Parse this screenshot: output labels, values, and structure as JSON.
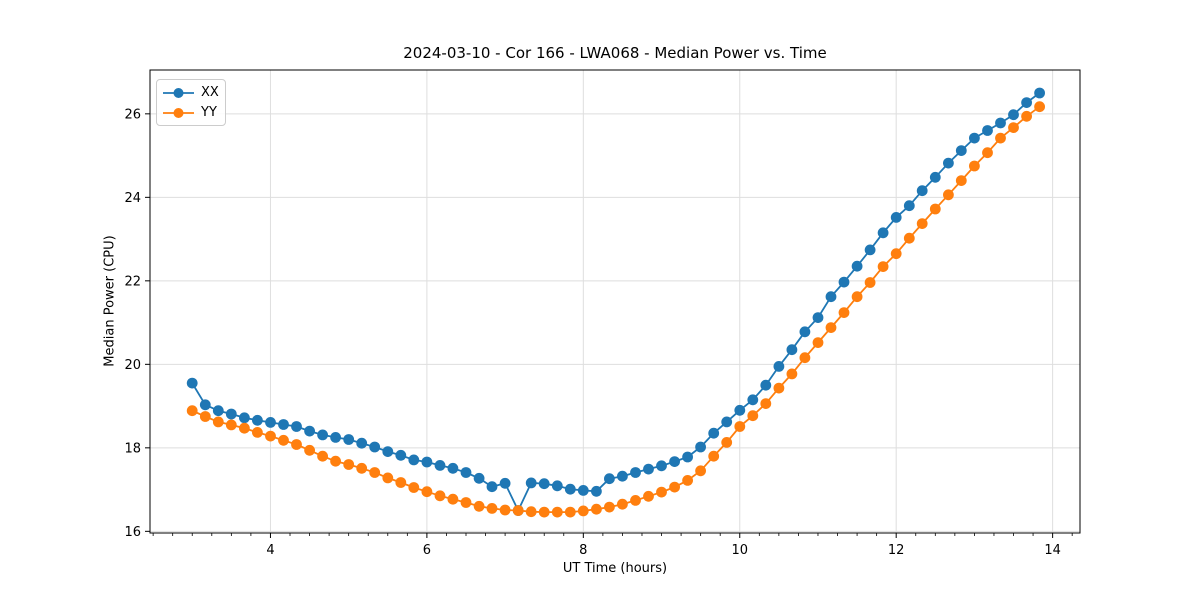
{
  "chart_data": {
    "type": "line",
    "title": "2024-03-10 - Cor 166 - LWA068 - Median Power vs. Time",
    "xlabel": "UT Time (hours)",
    "ylabel": "Median Power (CPU)",
    "xlim": [
      2.46,
      14.35
    ],
    "ylim": [
      15.96,
      27.05
    ],
    "xticks": [
      4,
      6,
      8,
      10,
      12,
      14
    ],
    "yticks": [
      16,
      18,
      20,
      22,
      24,
      26
    ],
    "x_minor_step": 0.25,
    "grid": true,
    "legend": {
      "position": "upper left"
    },
    "colors": {
      "grid": "#dedede",
      "spine": "#000000",
      "background": "#ffffff",
      "series_xx": "#1f77b4",
      "series_yy": "#ff7f0e"
    },
    "x": [
      3.0,
      3.167,
      3.333,
      3.5,
      3.667,
      3.833,
      4.0,
      4.167,
      4.333,
      4.5,
      4.667,
      4.833,
      5.0,
      5.167,
      5.333,
      5.5,
      5.667,
      5.833,
      6.0,
      6.167,
      6.333,
      6.5,
      6.667,
      6.833,
      7.0,
      7.167,
      7.333,
      7.5,
      7.667,
      7.833,
      8.0,
      8.167,
      8.333,
      8.5,
      8.667,
      8.833,
      9.0,
      9.167,
      9.333,
      9.5,
      9.667,
      9.833,
      10.0,
      10.167,
      10.333,
      10.5,
      10.667,
      10.833,
      11.0,
      11.167,
      11.333,
      11.5,
      11.667,
      11.833,
      12.0,
      12.167,
      12.333,
      12.5,
      12.667,
      12.833,
      13.0,
      13.167,
      13.333,
      13.5,
      13.667,
      13.833
    ],
    "series": [
      {
        "name": "XX",
        "color": "#1f77b4",
        "y": [
          19.55,
          19.03,
          18.89,
          18.81,
          18.72,
          18.66,
          18.61,
          18.56,
          18.51,
          18.4,
          18.31,
          18.25,
          18.2,
          18.11,
          18.02,
          17.91,
          17.82,
          17.71,
          17.66,
          17.58,
          17.51,
          17.41,
          17.27,
          17.07,
          17.15,
          16.5,
          17.16,
          17.14,
          17.09,
          17.01,
          16.98,
          16.96,
          17.26,
          17.32,
          17.41,
          17.49,
          17.57,
          17.67,
          17.78,
          18.02,
          18.35,
          18.62,
          18.9,
          19.15,
          19.5,
          19.95,
          20.35,
          20.78,
          21.12,
          21.62,
          21.97,
          22.35,
          22.74,
          23.15,
          23.52,
          23.8,
          24.16,
          24.48,
          24.82,
          25.12,
          25.42,
          25.6,
          25.78,
          25.98,
          26.27,
          26.5
        ]
      },
      {
        "name": "YY",
        "color": "#ff7f0e",
        "y": [
          18.89,
          18.75,
          18.62,
          18.55,
          18.47,
          18.37,
          18.28,
          18.18,
          18.08,
          17.94,
          17.8,
          17.68,
          17.6,
          17.51,
          17.41,
          17.28,
          17.17,
          17.05,
          16.95,
          16.85,
          16.77,
          16.69,
          16.6,
          16.55,
          16.51,
          16.5,
          16.47,
          16.46,
          16.46,
          16.46,
          16.49,
          16.53,
          16.58,
          16.65,
          16.74,
          16.84,
          16.94,
          17.06,
          17.22,
          17.45,
          17.8,
          18.13,
          18.51,
          18.77,
          19.06,
          19.43,
          19.77,
          20.16,
          20.52,
          20.88,
          21.24,
          21.62,
          21.96,
          22.34,
          22.65,
          23.02,
          23.37,
          23.72,
          24.06,
          24.4,
          24.75,
          25.07,
          25.42,
          25.67,
          25.94,
          26.17
        ]
      }
    ]
  }
}
